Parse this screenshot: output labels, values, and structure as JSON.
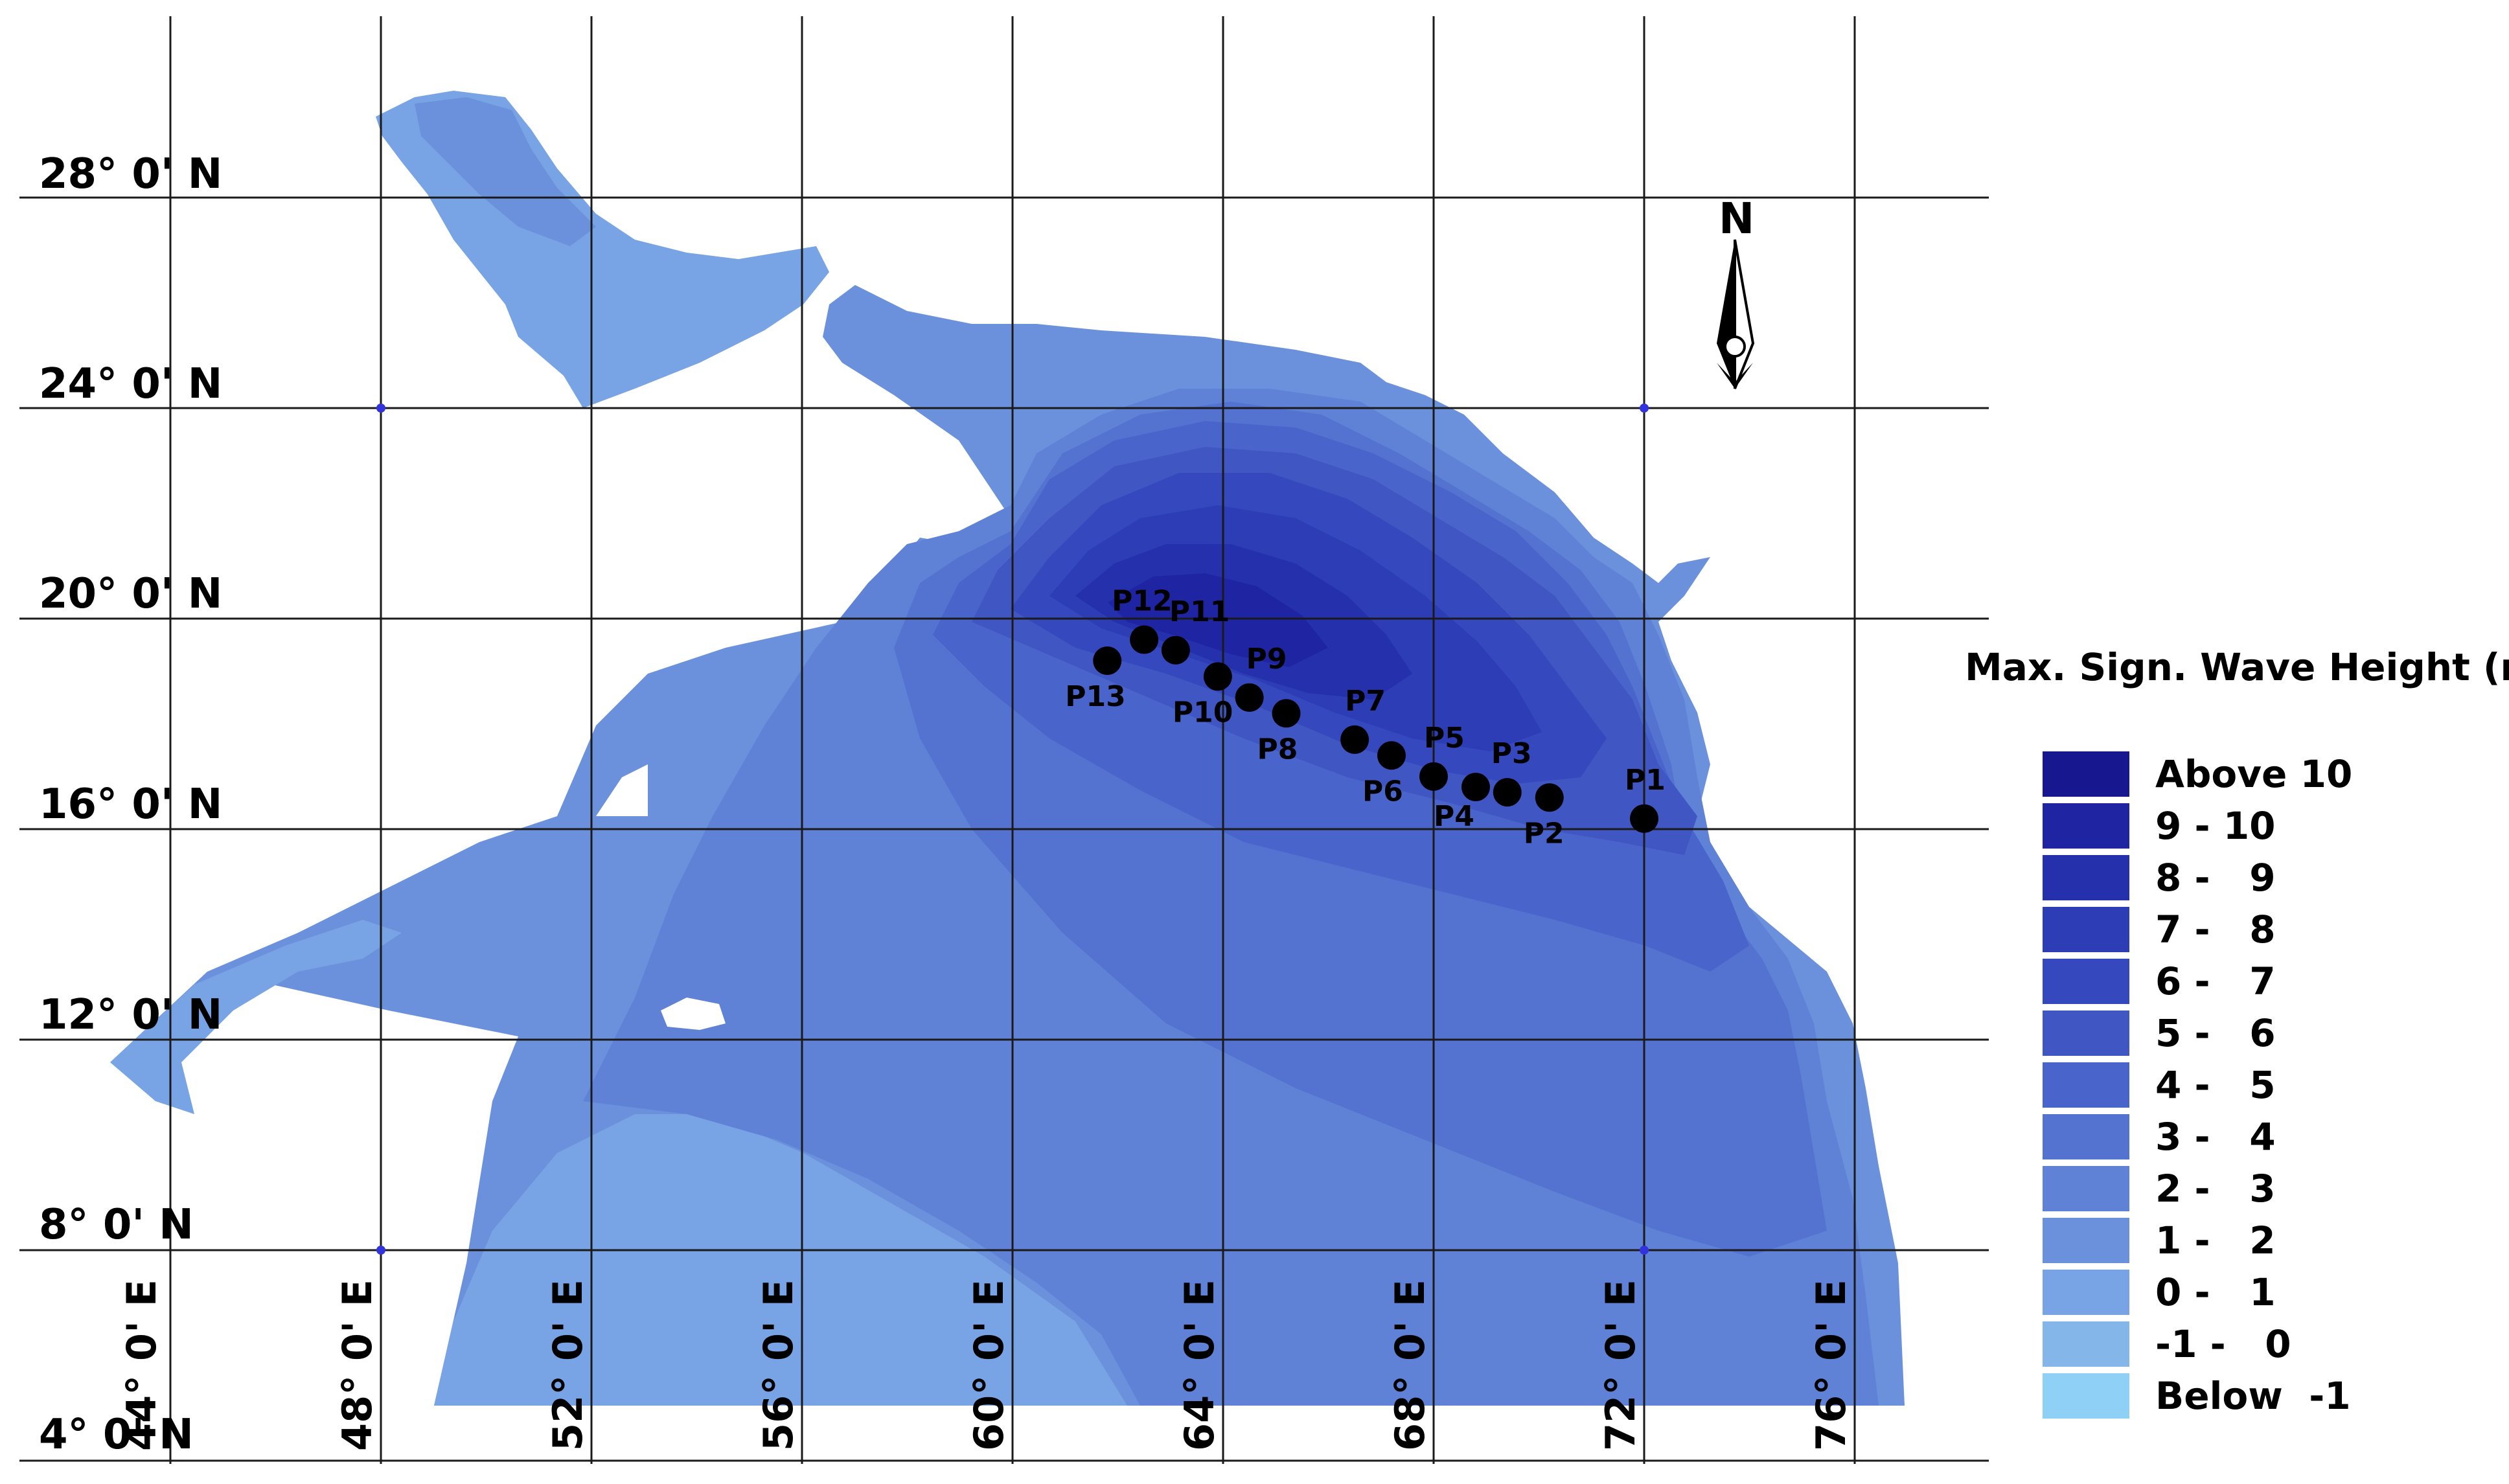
{
  "map": {
    "lat_labels": [
      "28° 0' N",
      "24° 0' N",
      "20° 0' N",
      "16° 0' N",
      "12° 0' N",
      "8° 0' N",
      "4° 0' N"
    ],
    "lon_labels": [
      "44° 0' E",
      "48° 0' E",
      "52° 0' E",
      "56° 0' E",
      "60° 0' E",
      "64° 0' E",
      "68° 0' E",
      "72° 0' E",
      "76° 0' E"
    ],
    "north_label": "N",
    "points": [
      {
        "label": "P1",
        "lon": 72.0,
        "lat": 16.2
      },
      {
        "label": "P2",
        "lon": 70.2,
        "lat": 16.6
      },
      {
        "label": "P3",
        "lon": 69.4,
        "lat": 16.7
      },
      {
        "label": "P4",
        "lon": 68.8,
        "lat": 16.8
      },
      {
        "label": "P5",
        "lon": 68.0,
        "lat": 17.0
      },
      {
        "label": "P6",
        "lon": 67.2,
        "lat": 17.4
      },
      {
        "label": "P7",
        "lon": 66.5,
        "lat": 17.7
      },
      {
        "label": "P8",
        "lon": 65.2,
        "lat": 18.2
      },
      {
        "label": "P9",
        "lon": 64.5,
        "lat": 18.5
      },
      {
        "label": "P10",
        "lon": 63.9,
        "lat": 18.9
      },
      {
        "label": "P11",
        "lon": 63.1,
        "lat": 19.4
      },
      {
        "label": "P12",
        "lon": 62.5,
        "lat": 19.6
      },
      {
        "label": "P13",
        "lon": 61.8,
        "lat": 19.2
      }
    ]
  },
  "legend": {
    "title": "Max. Sign. Wave Height (m)",
    "items": [
      {
        "label": "Above 10",
        "color": "#17188f"
      },
      {
        "label": "9 - 10",
        "color": "#1f25a2"
      },
      {
        "label": "8 -   9",
        "color": "#2530ad"
      },
      {
        "label": "7 -   8",
        "color": "#2c3db5"
      },
      {
        "label": "6 -   7",
        "color": "#3548bd"
      },
      {
        "label": "5 -   6",
        "color": "#3f56c3"
      },
      {
        "label": "4 -   5",
        "color": "#4964ca"
      },
      {
        "label": "3 -   4",
        "color": "#5473d1"
      },
      {
        "label": "2 -   3",
        "color": "#5f82d7"
      },
      {
        "label": "1 -   2",
        "color": "#6b91dd"
      },
      {
        "label": "0 -   1",
        "color": "#78a3e4"
      },
      {
        "label": "-1 -   0",
        "color": "#84b6ea"
      },
      {
        "label": "Below  -1",
        "color": "#8fd0f7"
      }
    ]
  }
}
